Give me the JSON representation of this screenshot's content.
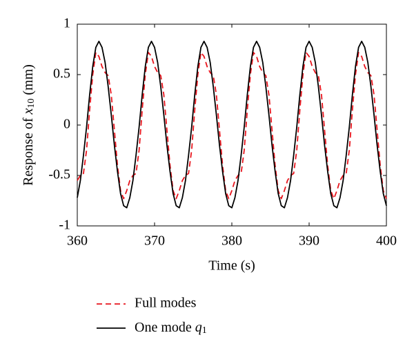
{
  "chart_data": {
    "type": "line",
    "xlabel": "Time (s)",
    "ylabel": "Response of x10 (mm)",
    "xlim": [
      360,
      400
    ],
    "xticks": [
      360,
      370,
      380,
      390,
      400
    ],
    "ylim": [
      -1,
      1
    ],
    "yticks": [
      -1,
      -0.5,
      0,
      0.5,
      1
    ],
    "x": [
      360,
      360.4,
      360.8,
      361.2,
      361.6,
      362,
      362.4,
      362.8,
      363.2,
      363.6,
      364,
      364.4,
      364.8,
      365.2,
      365.6,
      366,
      366.4,
      366.8,
      367.2,
      367.6,
      368,
      368.4,
      368.8,
      369.2,
      369.6,
      370,
      370.4,
      370.8,
      371.2,
      371.6,
      372,
      372.4,
      372.8,
      373.2,
      373.6,
      374,
      374.4,
      374.8,
      375.2,
      375.6,
      376,
      376.4,
      376.8,
      377.2,
      377.6,
      378,
      378.4,
      378.8,
      379.2,
      379.6,
      380,
      380.4,
      380.8,
      381.2,
      381.6,
      382,
      382.4,
      382.8,
      383.2,
      383.6,
      384,
      384.4,
      384.8,
      385.2,
      385.6,
      386,
      386.4,
      386.8,
      387.2,
      387.6,
      388,
      388.4,
      388.8,
      389.2,
      389.6,
      390,
      390.4,
      390.8,
      391.2,
      391.6,
      392,
      392.4,
      392.8,
      393.2,
      393.6,
      394,
      394.4,
      394.8,
      395.2,
      395.6,
      396,
      396.4,
      396.8,
      397.2,
      397.6,
      398,
      398.4,
      398.8,
      399.2,
      399.6,
      400
    ],
    "series": [
      {
        "name": "Full modes",
        "color": "#e8141c",
        "dash": true,
        "values": [
          -0.55,
          -0.5,
          -0.48,
          -0.25,
          0.15,
          0.5,
          0.72,
          0.68,
          0.58,
          0.52,
          0.49,
          0.3,
          -0.05,
          -0.4,
          -0.65,
          -0.73,
          -0.65,
          -0.55,
          -0.5,
          -0.48,
          -0.25,
          0.15,
          0.5,
          0.72,
          0.68,
          0.58,
          0.52,
          0.49,
          0.3,
          -0.05,
          -0.4,
          -0.65,
          -0.73,
          -0.65,
          -0.55,
          -0.5,
          -0.48,
          -0.25,
          0.15,
          0.5,
          0.72,
          0.68,
          0.58,
          0.52,
          0.49,
          0.3,
          -0.05,
          -0.4,
          -0.65,
          -0.73,
          -0.65,
          -0.55,
          -0.5,
          -0.48,
          -0.25,
          0.15,
          0.5,
          0.72,
          0.68,
          0.58,
          0.52,
          0.49,
          0.3,
          -0.05,
          -0.4,
          -0.65,
          -0.73,
          -0.65,
          -0.55,
          -0.5,
          -0.48,
          -0.25,
          0.15,
          0.5,
          0.72,
          0.68,
          0.58,
          0.52,
          0.49,
          0.3,
          -0.05,
          -0.4,
          -0.65,
          -0.73,
          -0.65,
          -0.55,
          -0.5,
          -0.48,
          -0.25,
          0.15,
          0.5,
          0.72,
          0.68,
          0.58,
          0.52,
          0.49,
          0.3,
          -0.05,
          -0.4,
          -0.65,
          -0.73
        ]
      },
      {
        "name": "One mode q1",
        "color": "#000000",
        "dash": false,
        "values": [
          -0.72,
          -0.55,
          -0.3,
          -0.02,
          0.3,
          0.58,
          0.77,
          0.83,
          0.77,
          0.62,
          0.38,
          0.1,
          -0.2,
          -0.46,
          -0.68,
          -0.8,
          -0.82,
          -0.72,
          -0.55,
          -0.3,
          -0.02,
          0.3,
          0.58,
          0.77,
          0.83,
          0.77,
          0.62,
          0.38,
          0.1,
          -0.2,
          -0.46,
          -0.68,
          -0.8,
          -0.82,
          -0.72,
          -0.55,
          -0.3,
          -0.02,
          0.3,
          0.58,
          0.77,
          0.83,
          0.77,
          0.62,
          0.38,
          0.1,
          -0.2,
          -0.46,
          -0.68,
          -0.8,
          -0.82,
          -0.72,
          -0.55,
          -0.3,
          -0.02,
          0.3,
          0.58,
          0.77,
          0.83,
          0.77,
          0.62,
          0.38,
          0.1,
          -0.2,
          -0.46,
          -0.68,
          -0.8,
          -0.82,
          -0.72,
          -0.55,
          -0.3,
          -0.02,
          0.3,
          0.58,
          0.77,
          0.83,
          0.77,
          0.62,
          0.38,
          0.1,
          -0.2,
          -0.46,
          -0.68,
          -0.8,
          -0.82,
          -0.72,
          -0.55,
          -0.3,
          -0.02,
          0.3,
          0.58,
          0.77,
          0.83,
          0.77,
          0.62,
          0.38,
          0.1,
          -0.2,
          -0.46,
          -0.68,
          -0.8
        ]
      }
    ]
  }
}
